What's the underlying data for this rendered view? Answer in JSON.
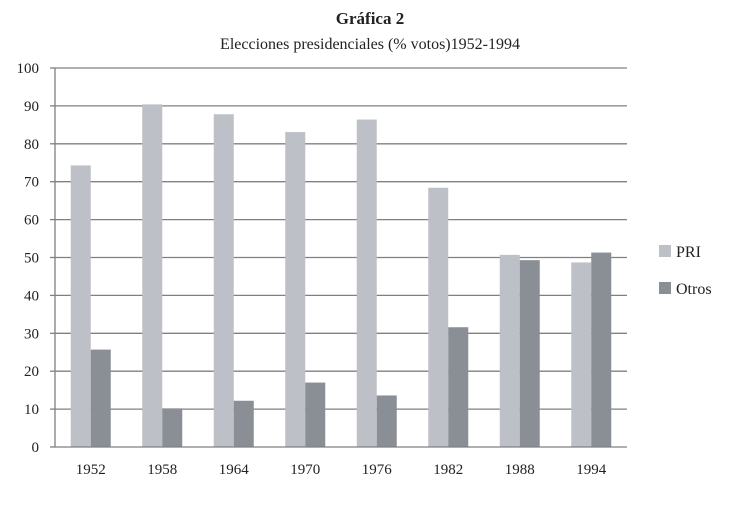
{
  "chart_data": {
    "type": "bar",
    "title": "Gráfica 2",
    "subtitle": "Elecciones presidenciales (% votos)1952-1994",
    "categories": [
      "1952",
      "1958",
      "1964",
      "1970",
      "1976",
      "1982",
      "1988",
      "1994"
    ],
    "series": [
      {
        "name": "PRI",
        "color": "#bdc0c6",
        "values": [
          74.3,
          90.4,
          87.8,
          83.1,
          86.4,
          68.4,
          50.7,
          48.7
        ]
      },
      {
        "name": "Otros",
        "color": "#8a8e95",
        "values": [
          25.7,
          10.2,
          12.2,
          17.0,
          13.6,
          31.6,
          49.3,
          51.3
        ]
      }
    ],
    "ylim": [
      0,
      100
    ],
    "yticks": [
      "0",
      "10",
      "20",
      "30",
      "40",
      "50",
      "60",
      "70",
      "80",
      "90",
      "100"
    ],
    "grid": true,
    "legend": "right",
    "xlabel": "",
    "ylabel": ""
  }
}
